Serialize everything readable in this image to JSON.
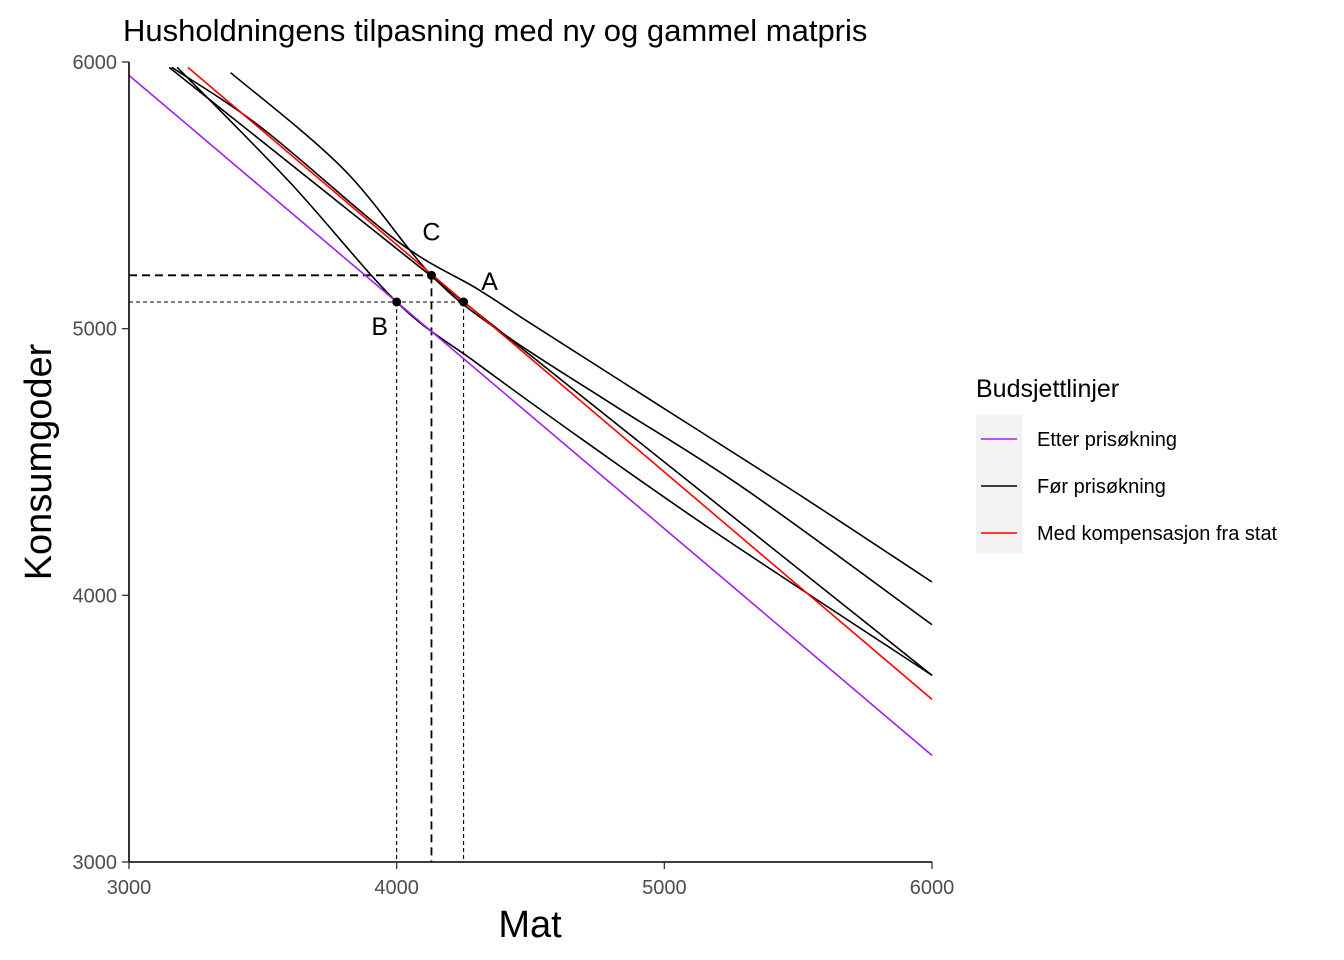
{
  "chart_data": {
    "type": "line",
    "title": "Husholdningens tilpasning med ny og gammel matpris",
    "xlabel": "Mat",
    "ylabel": "Konsumgoder",
    "xlim": [
      3000,
      6000
    ],
    "ylim": [
      3000,
      6000
    ],
    "x_ticks": [
      3000,
      4000,
      5000,
      6000
    ],
    "y_ticks": [
      3000,
      4000,
      5000,
      6000
    ],
    "grid": false,
    "legend": {
      "title": "Budsjettlinjer",
      "position": "right",
      "entries": [
        {
          "label": "Etter prisøkning",
          "color": "#a020f0"
        },
        {
          "label": "Før prisøkning",
          "color": "#000000"
        },
        {
          "label": "Med kompensasjon fra stat",
          "color": "#ff0000"
        }
      ]
    },
    "budget_lines": [
      {
        "name": "Etter prisøkning",
        "color": "#a020f0",
        "points": [
          [
            3000,
            5950
          ],
          [
            6000,
            3400
          ]
        ]
      },
      {
        "name": "Før prisøkning",
        "color": "#000000",
        "points": [
          [
            3150,
            5980
          ],
          [
            6000,
            3700
          ]
        ]
      },
      {
        "name": "Med kompensasjon fra stat",
        "color": "#ff0000",
        "points": [
          [
            3220,
            5980
          ],
          [
            6000,
            3610
          ]
        ]
      }
    ],
    "indifference_curves": [
      {
        "color": "#000000",
        "points": [
          [
            3160,
            5980
          ],
          [
            3500,
            5750
          ],
          [
            4000,
            5330
          ],
          [
            4300,
            5150
          ],
          [
            4500,
            5020
          ],
          [
            5000,
            4700
          ],
          [
            5500,
            4380
          ],
          [
            6000,
            4050
          ]
        ]
      },
      {
        "color": "#000000",
        "points": [
          [
            3380,
            5960
          ],
          [
            3800,
            5600
          ],
          [
            4130,
            5200
          ],
          [
            4400,
            4980
          ],
          [
            4800,
            4720
          ],
          [
            5300,
            4400
          ],
          [
            6000,
            3890
          ]
        ]
      },
      {
        "color": "#000000",
        "points": [
          [
            3180,
            5980
          ],
          [
            3600,
            5550
          ],
          [
            4000,
            5100
          ],
          [
            4300,
            4870
          ],
          [
            4700,
            4580
          ],
          [
            5200,
            4230
          ],
          [
            6000,
            3700
          ]
        ]
      }
    ],
    "points": [
      {
        "label": "A",
        "x": 4250,
        "y": 5100
      },
      {
        "label": "B",
        "x": 4000,
        "y": 5100
      },
      {
        "label": "C",
        "x": 4130,
        "y": 5200
      }
    ],
    "reference_lines": [
      {
        "point": "A",
        "x": 4250,
        "y": 5100,
        "style": "dotted"
      },
      {
        "point": "B",
        "x": 4000,
        "y": 5100,
        "style": "dotted"
      },
      {
        "point": "C",
        "x": 4130,
        "y": 5200,
        "style": "dashed"
      }
    ]
  }
}
